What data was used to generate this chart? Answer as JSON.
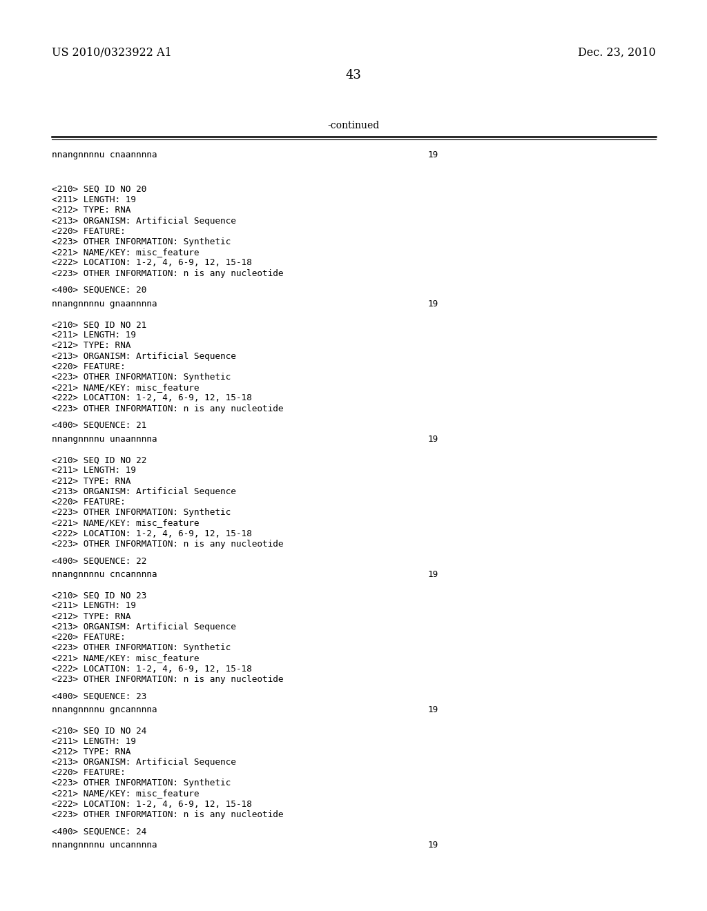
{
  "bg_color": "#ffffff",
  "header_left": "US 2010/0323922 A1",
  "header_right": "Dec. 23, 2010",
  "page_number": "43",
  "continued_label": "-continued",
  "first_seq_line": "nnangnnnnu cnaannnna",
  "first_seq_num": "19",
  "blocks": [
    {
      "lines": [
        "<210> SEQ ID NO 20",
        "<211> LENGTH: 19",
        "<212> TYPE: RNA",
        "<213> ORGANISM: Artificial Sequence",
        "<220> FEATURE:",
        "<223> OTHER INFORMATION: Synthetic",
        "<221> NAME/KEY: misc_feature",
        "<222> LOCATION: 1-2, 4, 6-9, 12, 15-18",
        "<223> OTHER INFORMATION: n is any nucleotide"
      ],
      "seq400": "<400> SEQUENCE: 20",
      "seq_data": "nnangnnnnu gnaannnna",
      "seq_len": "19"
    },
    {
      "lines": [
        "<210> SEQ ID NO 21",
        "<211> LENGTH: 19",
        "<212> TYPE: RNA",
        "<213> ORGANISM: Artificial Sequence",
        "<220> FEATURE:",
        "<223> OTHER INFORMATION: Synthetic",
        "<221> NAME/KEY: misc_feature",
        "<222> LOCATION: 1-2, 4, 6-9, 12, 15-18",
        "<223> OTHER INFORMATION: n is any nucleotide"
      ],
      "seq400": "<400> SEQUENCE: 21",
      "seq_data": "nnangnnnnu unaannnna",
      "seq_len": "19"
    },
    {
      "lines": [
        "<210> SEQ ID NO 22",
        "<211> LENGTH: 19",
        "<212> TYPE: RNA",
        "<213> ORGANISM: Artificial Sequence",
        "<220> FEATURE:",
        "<223> OTHER INFORMATION: Synthetic",
        "<221> NAME/KEY: misc_feature",
        "<222> LOCATION: 1-2, 4, 6-9, 12, 15-18",
        "<223> OTHER INFORMATION: n is any nucleotide"
      ],
      "seq400": "<400> SEQUENCE: 22",
      "seq_data": "nnangnnnnu cncannnna",
      "seq_len": "19"
    },
    {
      "lines": [
        "<210> SEQ ID NO 23",
        "<211> LENGTH: 19",
        "<212> TYPE: RNA",
        "<213> ORGANISM: Artificial Sequence",
        "<220> FEATURE:",
        "<223> OTHER INFORMATION: Synthetic",
        "<221> NAME/KEY: misc_feature",
        "<222> LOCATION: 1-2, 4, 6-9, 12, 15-18",
        "<223> OTHER INFORMATION: n is any nucleotide"
      ],
      "seq400": "<400> SEQUENCE: 23",
      "seq_data": "nnangnnnnu gncannnna",
      "seq_len": "19"
    },
    {
      "lines": [
        "<210> SEQ ID NO 24",
        "<211> LENGTH: 19",
        "<212> TYPE: RNA",
        "<213> ORGANISM: Artificial Sequence",
        "<220> FEATURE:",
        "<223> OTHER INFORMATION: Synthetic",
        "<221> NAME/KEY: misc_feature",
        "<222> LOCATION: 1-2, 4, 6-9, 12, 15-18",
        "<223> OTHER INFORMATION: n is any nucleotide"
      ],
      "seq400": "<400> SEQUENCE: 24",
      "seq_data": "nnangnnnnu uncannnna",
      "seq_len": "19"
    }
  ]
}
